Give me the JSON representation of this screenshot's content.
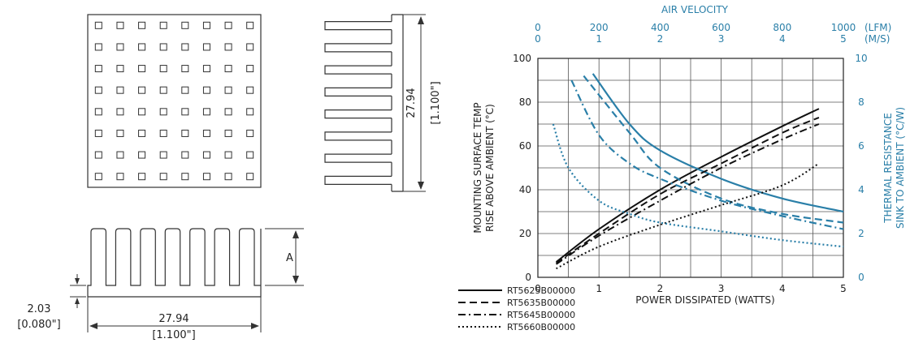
{
  "drawing": {
    "top_view": {
      "pin_rows": 8,
      "pin_cols": 8
    },
    "side_view": {
      "dim_value": "27.94",
      "dim_inch": "[1.100\"]"
    },
    "front_view": {
      "fin_count": 7,
      "height_label": "A",
      "width_value": "27.94",
      "width_inch": "[1.100\"]",
      "base_value": "2.03",
      "base_inch": "[0.080\"]"
    }
  },
  "chart_data": {
    "type": "line",
    "xlabel": "POWER DISSIPATED (WATTS)",
    "ylabel_left": [
      "MOUNTING SURFACE TEMP",
      "RISE ABOVE AMBIENT (°C)"
    ],
    "ylabel_right": [
      "THERMAL RESISTANCE",
      "SINK TO AMBIENT (°C/W)"
    ],
    "top_axis_label": "AIR VELOCITY",
    "top_lfm_ticks": [
      "0",
      "200",
      "400",
      "600",
      "800",
      "1000"
    ],
    "top_lfm_unit": "(LFM)",
    "top_ms_ticks": [
      "0",
      "1",
      "2",
      "3",
      "4",
      "5"
    ],
    "top_ms_unit": "(M/S)",
    "xlim": [
      0,
      5
    ],
    "ylim_left": [
      0,
      100
    ],
    "ylim_right": [
      0,
      10
    ],
    "x_ticks": [
      "0",
      "1",
      "2",
      "3",
      "4",
      "5"
    ],
    "y_left_ticks": [
      "0",
      "20",
      "40",
      "60",
      "80",
      "100"
    ],
    "y_right_ticks": [
      "0",
      "2",
      "4",
      "6",
      "8",
      "10"
    ],
    "grid": true,
    "colors": {
      "temp_rise": "#111111",
      "thermal_resistance": "#2a7fa8"
    },
    "series": [
      {
        "name": "RT5625B00000",
        "style": "solid",
        "temp_rise": {
          "x": [
            0.3,
            1,
            2,
            3,
            4,
            4.6
          ],
          "y": [
            7,
            22,
            40,
            55,
            69,
            77
          ]
        },
        "thermal_resistance_vs_air_ms": {
          "x": [
            0.9,
            1.5,
            2,
            3,
            4,
            5
          ],
          "y": [
            9.3,
            7,
            5.8,
            4.5,
            3.6,
            3
          ]
        }
      },
      {
        "name": "RT5635B00000",
        "style": "dashed",
        "temp_rise": {
          "x": [
            0.3,
            1,
            2,
            3,
            4,
            4.6
          ],
          "y": [
            6.5,
            20,
            38,
            52,
            66,
            73
          ]
        },
        "thermal_resistance_vs_air_ms": {
          "x": [
            0.75,
            1.5,
            2,
            3,
            4,
            5
          ],
          "y": [
            9.2,
            6.6,
            5,
            3.6,
            2.9,
            2.5
          ]
        }
      },
      {
        "name": "RT5645B00000",
        "style": "dashdot",
        "temp_rise": {
          "x": [
            0.3,
            1,
            2,
            3,
            4,
            4.6
          ],
          "y": [
            6,
            19,
            35,
            50,
            63,
            70
          ]
        },
        "thermal_resistance_vs_air_ms": {
          "x": [
            0.55,
            1,
            1.5,
            2,
            3,
            4,
            5
          ],
          "y": [
            9,
            6.5,
            5.2,
            4.5,
            3.5,
            2.8,
            2.2
          ]
        }
      },
      {
        "name": "RT5660B00000",
        "style": "dotted",
        "temp_rise": {
          "x": [
            0.3,
            1,
            2,
            3,
            4,
            4.6
          ],
          "y": [
            4,
            14,
            24,
            33,
            42,
            52
          ]
        },
        "thermal_resistance_vs_air_ms": {
          "x": [
            0.25,
            0.5,
            1,
            1.5,
            2,
            3,
            4,
            5
          ],
          "y": [
            7,
            5,
            3.5,
            2.9,
            2.5,
            2.1,
            1.7,
            1.4
          ]
        }
      }
    ]
  }
}
